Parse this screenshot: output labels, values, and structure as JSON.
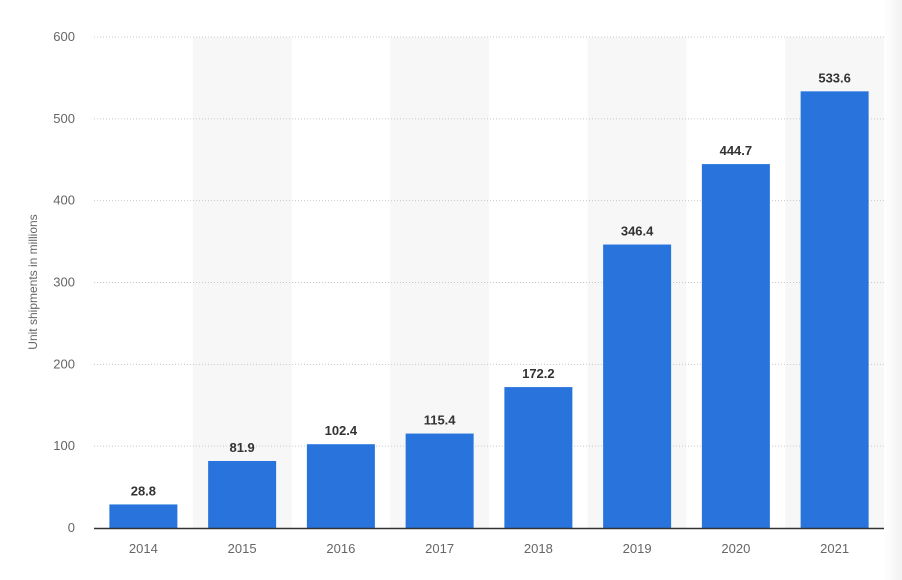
{
  "chart_data": {
    "type": "bar",
    "title": "",
    "xlabel": "",
    "ylabel": "Unit shipments in millions",
    "categories": [
      "2014",
      "2015",
      "2016",
      "2017",
      "2018",
      "2019",
      "2020",
      "2021"
    ],
    "values": [
      28.8,
      81.9,
      102.4,
      115.4,
      172.2,
      346.4,
      444.7,
      533.6
    ],
    "value_labels": [
      "28.8",
      "81.9",
      "102.4",
      "115.4",
      "172.2",
      "346.4",
      "444.7",
      "533.6"
    ],
    "ylim": [
      0,
      600
    ],
    "yticks": [
      0,
      100,
      200,
      300,
      400,
      500,
      600
    ],
    "ytick_labels": [
      "0",
      "100",
      "200",
      "300",
      "400",
      "500",
      "600"
    ],
    "grid": true,
    "legend": "none",
    "colors": {
      "bar": "#2874dc",
      "band": "#f7f7f7",
      "grid": "#c8c8c8",
      "axis": "#333333"
    }
  }
}
